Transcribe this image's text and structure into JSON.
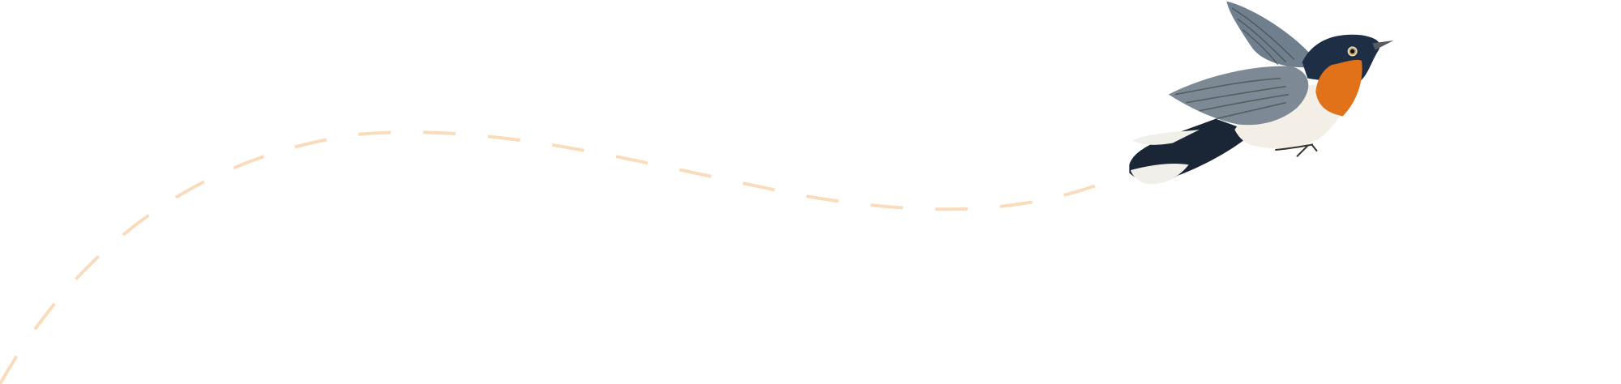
{
  "illustration": {
    "subject": "bird-in-flight",
    "colors": {
      "flight_path": "#fadcbc",
      "throat": "#e2721a",
      "head": "#1e2f45",
      "wing": "#7d8a96",
      "belly": "#f3efe6",
      "tail": "#1a2636"
    }
  }
}
